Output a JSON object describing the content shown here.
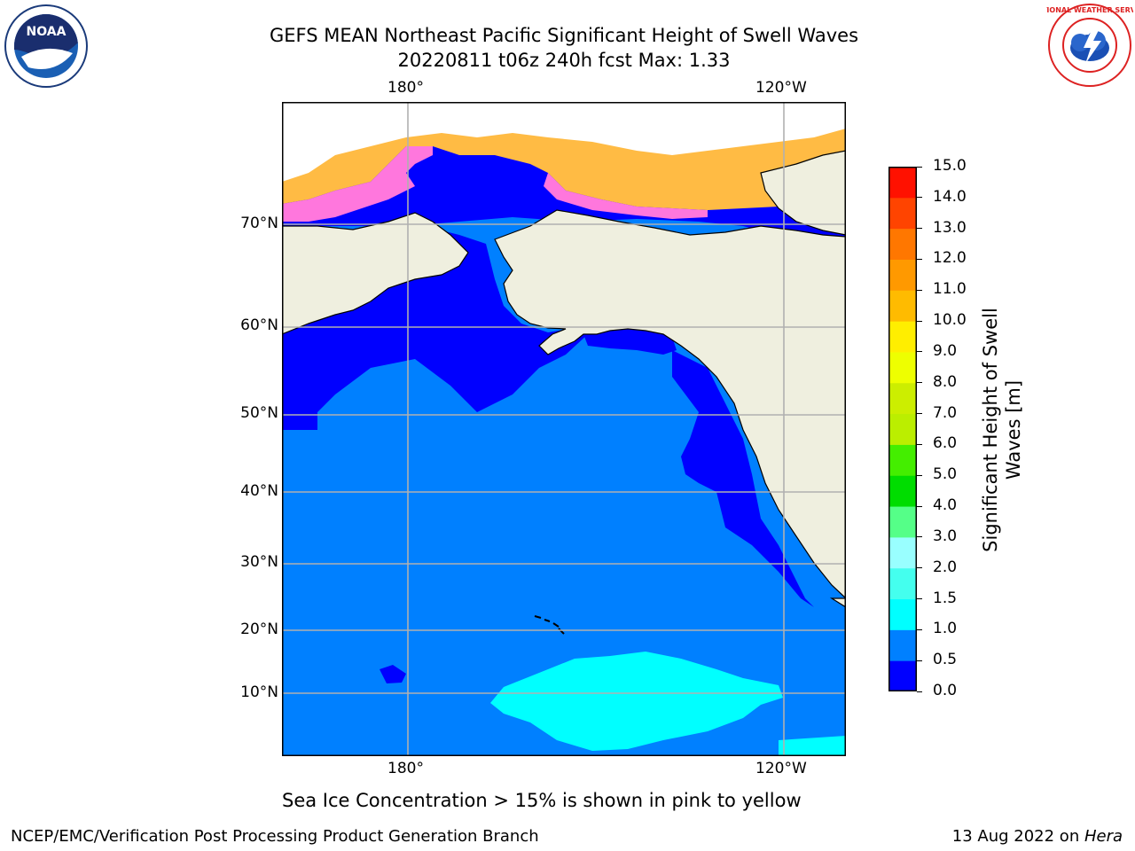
{
  "header": {
    "title_line1": "GEFS MEAN Northeast Pacific Significant Height of Swell Waves",
    "title_line2": "20220811 t06z 240h fcst   Max: 1.33"
  },
  "logos": {
    "left": {
      "name": "noaa-logo",
      "text": "NOAA"
    },
    "right": {
      "name": "nws-logo",
      "text": "NATIONAL WEATHER SERVICE"
    }
  },
  "map": {
    "lon_labels": [
      "180°",
      "120°W"
    ],
    "lat_labels": [
      "70°N",
      "60°N",
      "50°N",
      "40°N",
      "30°N",
      "20°N",
      "10°N"
    ],
    "colors": {
      "land": "#efefdf",
      "ocean_low": "#0000ff",
      "ocean_mid": "#0080ff",
      "ocean_high": "#00ffff",
      "ice_pink": "#ff77dd",
      "ice_orange": "#ffbb44",
      "grid": "#b0b0b0"
    },
    "note": "Sea Ice Concentration > 15% is shown in pink to yellow"
  },
  "colorbar": {
    "label_line1": "Significant Height of Swell",
    "label_line2": "Waves [m]",
    "ticks": [
      "0.0",
      "0.5",
      "1.0",
      "1.5",
      "2.0",
      "3.0",
      "4.0",
      "5.0",
      "6.0",
      "7.0",
      "8.0",
      "9.0",
      "10.0",
      "11.0",
      "12.0",
      "13.0",
      "14.0",
      "15.0"
    ],
    "colors": [
      "#0000ff",
      "#0080ff",
      "#00ffff",
      "#44ffee",
      "#99ffff",
      "#55ff88",
      "#00dd00",
      "#44ee00",
      "#bbee00",
      "#ccee00",
      "#eeff00",
      "#ffee00",
      "#ffbb00",
      "#ff9900",
      "#ff7700",
      "#ff4400",
      "#ff1100"
    ]
  },
  "footer": {
    "left": "NCEP/EMC/Verification Post Processing Product Generation Branch",
    "right_date": "13 Aug 2022 on ",
    "right_host": "Hera"
  }
}
